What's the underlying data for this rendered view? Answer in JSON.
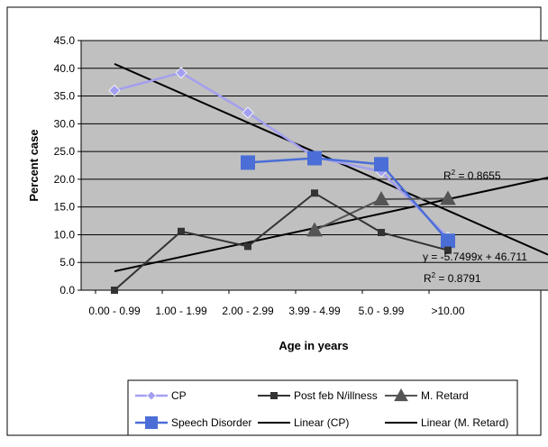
{
  "chart_data": {
    "type": "line",
    "title": "",
    "xlabel": "Age in years",
    "ylabel": "Percent case",
    "categories": [
      "0.00 - 0.99",
      "1.00 - 1.99",
      "2.00 - 2.99",
      "3.99 - 4.99",
      "5.0 - 9.99",
      ">10.00"
    ],
    "ylim": [
      0,
      45
    ],
    "yticks": [
      "0.0",
      "5.0",
      "10.0",
      "15.0",
      "20.0",
      "25.0",
      "30.0",
      "35.0",
      "40.0",
      "45.0"
    ],
    "grid": true,
    "plot_background": "#c0c0c0",
    "legend_position": "bottom",
    "series": [
      {
        "name": "CP",
        "color": "#a39ff0",
        "marker": "diamond",
        "values": [
          36.0,
          39.2,
          32.0,
          24.0,
          21.4,
          9.5
        ]
      },
      {
        "name": "Post feb N/illness",
        "color": "#333333",
        "marker": "square",
        "values": [
          0.0,
          10.6,
          7.9,
          17.5,
          10.4,
          7.2
        ]
      },
      {
        "name": "M. Retard",
        "color": "#555555",
        "marker": "triangle",
        "values": [
          null,
          null,
          null,
          10.8,
          16.4,
          16.5
        ]
      },
      {
        "name": "Speech Disorder",
        "color": "#4a6ed6",
        "marker": "square",
        "values": [
          null,
          null,
          23.0,
          23.8,
          22.7,
          8.9
        ]
      }
    ],
    "trendlines": [
      {
        "name": "Linear (CP)",
        "color": "#000000",
        "x_start": 0.0,
        "y_start": 40.8,
        "x_end": 6.5,
        "y_end": 6.4
      },
      {
        "name": "Linear (M. Retard)",
        "color": "#000000",
        "x_start": 0.0,
        "y_start": 3.4,
        "x_end": 6.5,
        "y_end": 20.3
      }
    ],
    "annotations": [
      {
        "text": "R² = 0.8655",
        "base": "R",
        "sup": "2",
        "rest": " = 0.8655",
        "near": "Linear (M. Retard)"
      },
      {
        "text": "y = -5.7499x + 46.711",
        "near": "Linear (CP)"
      },
      {
        "text": "R² = 0.8791",
        "base": "R",
        "sup": "2",
        "rest": " = 0.8791",
        "near": "Linear (CP)"
      }
    ]
  }
}
